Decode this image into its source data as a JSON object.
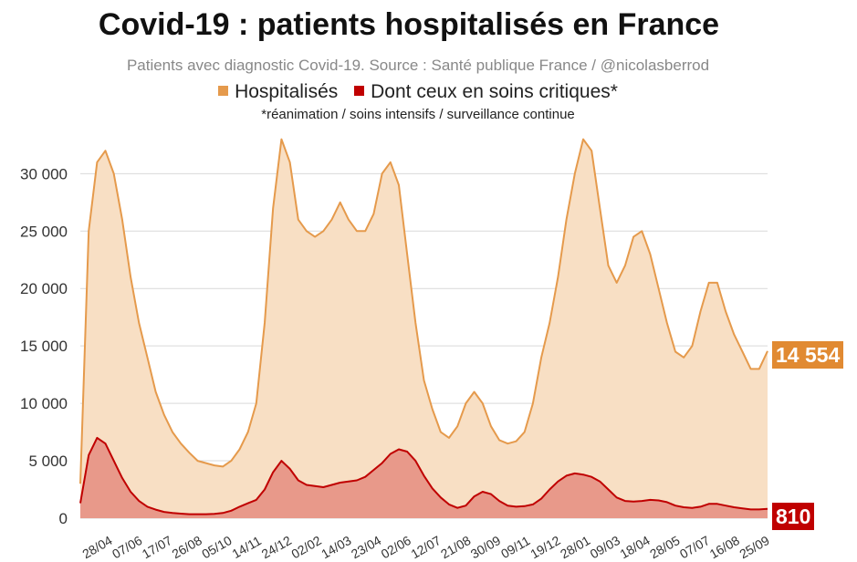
{
  "header": {
    "title": "Covid-19 : patients hospitalisés en France",
    "subtitle": "Patients avec diagnostic Covid-19. Source : Santé publique France / @nicolasberrod",
    "note": "*réanimation / soins intensifs / surveillance continue"
  },
  "legend": {
    "hospitalises": "Hospitalisés",
    "critiques": "Dont ceux en soins critiques*"
  },
  "colors": {
    "hosp_line": "#e59a4c",
    "hosp_fill": "#f8dfc4",
    "crit_line": "#c00000",
    "crit_fill": "#e8998a",
    "hosp_badge": "#e18a32",
    "crit_badge": "#c00000",
    "grid": "#d9d9d9"
  },
  "badges": {
    "hospitalises_last": "14 554",
    "critiques_last": "810"
  },
  "chart_data": {
    "type": "area",
    "title": "Covid-19 : patients hospitalisés en France",
    "ylim": [
      0,
      34000
    ],
    "yticks": [
      0,
      5000,
      10000,
      15000,
      20000,
      25000,
      30000
    ],
    "ytick_labels": [
      "0",
      "5 000",
      "10 000",
      "15 000",
      "20 000",
      "25 000",
      "30 000"
    ],
    "xtick_labels": [
      "28/04",
      "07/06",
      "17/07",
      "26/08",
      "05/10",
      "14/11",
      "24/12",
      "02/02",
      "14/03",
      "23/04",
      "02/06",
      "12/07",
      "21/08",
      "30/09",
      "09/11",
      "19/12",
      "28/01",
      "09/03",
      "18/04",
      "28/05",
      "07/07",
      "16/08",
      "25/09"
    ],
    "grid": true,
    "series": [
      {
        "name": "Hospitalisés",
        "values": [
          3000,
          25000,
          31000,
          32000,
          30000,
          26000,
          21000,
          17000,
          14000,
          11000,
          9000,
          7500,
          6500,
          5700,
          5000,
          4800,
          4600,
          4500,
          5000,
          6000,
          7500,
          10000,
          17000,
          27000,
          33000,
          31000,
          26000,
          25000,
          24500,
          25000,
          26000,
          27500,
          26000,
          25000,
          25000,
          26500,
          30000,
          31000,
          29000,
          23000,
          17000,
          12000,
          9500,
          7500,
          7000,
          8000,
          10000,
          11000,
          10000,
          8000,
          6800,
          6500,
          6700,
          7500,
          10000,
          14000,
          17000,
          21000,
          26000,
          30000,
          33000,
          32000,
          27000,
          22000,
          20500,
          22000,
          24500,
          25000,
          23000,
          20000,
          17000,
          14500,
          14000,
          15000,
          18000,
          20500,
          20500,
          18000,
          16000,
          14500,
          13000,
          13000,
          14554
        ]
      },
      {
        "name": "Dont ceux en soins critiques*",
        "values": [
          1300,
          5500,
          7000,
          6500,
          5000,
          3500,
          2300,
          1500,
          1000,
          750,
          550,
          450,
          400,
          350,
          350,
          350,
          380,
          450,
          650,
          1000,
          1300,
          1600,
          2500,
          4000,
          5000,
          4300,
          3300,
          2900,
          2800,
          2700,
          2900,
          3100,
          3200,
          3300,
          3600,
          4200,
          4800,
          5600,
          6000,
          5800,
          5000,
          3700,
          2600,
          1800,
          1200,
          900,
          1100,
          1900,
          2300,
          2100,
          1500,
          1100,
          1000,
          1050,
          1200,
          1700,
          2500,
          3200,
          3700,
          3900,
          3800,
          3600,
          3200,
          2500,
          1800,
          1500,
          1450,
          1500,
          1600,
          1550,
          1400,
          1100,
          950,
          900,
          1000,
          1250,
          1250,
          1100,
          950,
          850,
          760,
          760,
          810
        ]
      }
    ]
  }
}
